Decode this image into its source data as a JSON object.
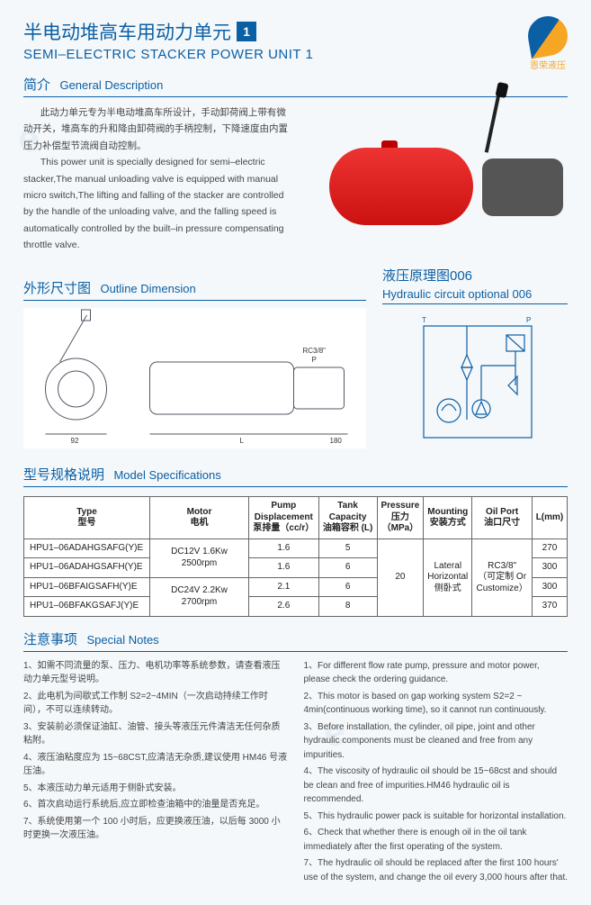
{
  "logo": {
    "brand": "恩荣液压"
  },
  "title": {
    "cn": "半电动堆高车用动力单元",
    "num": "1",
    "en": "SEMI–ELECTRIC STACKER POWER UNIT 1"
  },
  "sect_desc": {
    "cn": "简介",
    "en": "General Description"
  },
  "desc_cn": "此动力单元专为半电动堆高车所设计，手动卸荷阀上带有微动开关，堆高车的升和降由卸荷阀的手柄控制，下降速度由内置压力补偿型节流阀自动控制。",
  "desc_en": "This power unit is specially designed for semi–electric stacker,The manual unloading valve is equipped with manual micro switch,The lifting and falling of the stacker are controlled by the handle of the unloading valve, and the falling speed is automatically controlled by the built–in pressure compensating throttle valve.",
  "sect_dim": {
    "cn": "外形尺寸图",
    "en": "Outline Dimension"
  },
  "sect_circ": {
    "cn": "液压原理图006",
    "en": "Hydraulic circuit optional 006"
  },
  "dim_labels": {
    "rc": "RC3/8\"",
    "p": "P",
    "l": "L",
    "w92": "92",
    "w180": "180"
  },
  "sect_spec": {
    "cn": "型号规格说明",
    "en": "Model Specifications"
  },
  "table": {
    "headers": {
      "type": "Type\n型号",
      "motor": "Motor\n电机",
      "pump": "Pump\nDisplacement\n泵排量（cc/r）",
      "tank": "Tank\nCapacity\n油箱容积 (L)",
      "pressure": "Pressure\n压力\n（MPa）",
      "mount": "Mounting\n安装方式",
      "port": "Oil Port\n油口尺寸",
      "len": "L(mm)"
    },
    "motors": [
      "DC12V 1.6Kw 2500rpm",
      "DC24V 2.2Kw 2700rpm"
    ],
    "pressure": "20",
    "mount": "Lateral\nHorizontal\n侧卧式",
    "port": "RC3/8\"\n（可定制 Or\nCustomize）",
    "rows": [
      {
        "type": "HPU1–06ADAHGSAFG(Y)E",
        "pump": "1.6",
        "tank": "5",
        "len": "270"
      },
      {
        "type": "HPU1–06ADAHGSAFH(Y)E",
        "pump": "1.6",
        "tank": "6",
        "len": "300"
      },
      {
        "type": "HPU1–06BFAIGSAFH(Y)E",
        "pump": "2.1",
        "tank": "6",
        "len": "300"
      },
      {
        "type": "HPU1–06BFAKGSAFJ(Y)E",
        "pump": "2.6",
        "tank": "8",
        "len": "370"
      }
    ]
  },
  "sect_notes": {
    "cn": "注意事项",
    "en": "Special Notes"
  },
  "notes_cn": [
    "1、如需不同流量的泵、压力、电机功率等系统参数，请查看液压动力单元型号说明。",
    "2、此电机为间歇式工作制 S2=2~4MIN（一次启动持续工作时间），不可以连续转动。",
    "3、安装前必须保证油缸、油管、接头等液压元件清洁无任何杂质粘附。",
    "4、液压油粘度应为 15~68CST,应清洁无杂质,建议使用 HM46 号液压油。",
    "5、本液压动力单元适用于侧卧式安装。",
    "6、首次启动运行系统后,应立即检查油箱中的油量是否充足。",
    "7、系统使用第一个 100 小时后，应更换液压油，以后每 3000 小时更换一次液压油。"
  ],
  "notes_en": [
    "1、For different flow rate pump, pressure and motor power, please check the ordering guidance.",
    "2、This motor is based on gap working system S2=2 ~ 4min(continuous working time), so it cannot run continuously.",
    "3、Before installation, the cylinder, oil pipe, joint and other hydraulic components must be cleaned and free from any impurities.",
    "4、The viscosity of hydraulic oil should be 15~68cst and should be clean and free of impurities.HM46 hydraulic oil is recommended.",
    "5、This hydraulic power pack is suitable for horizontal installation.",
    "6、Check that whether there is enough oil in the oil tank immediately after the first operating of the system.",
    "7、The hydraulic oil should be replaced after the first 100 hours' use of the system, and change the oil every 3,000 hours after that."
  ]
}
